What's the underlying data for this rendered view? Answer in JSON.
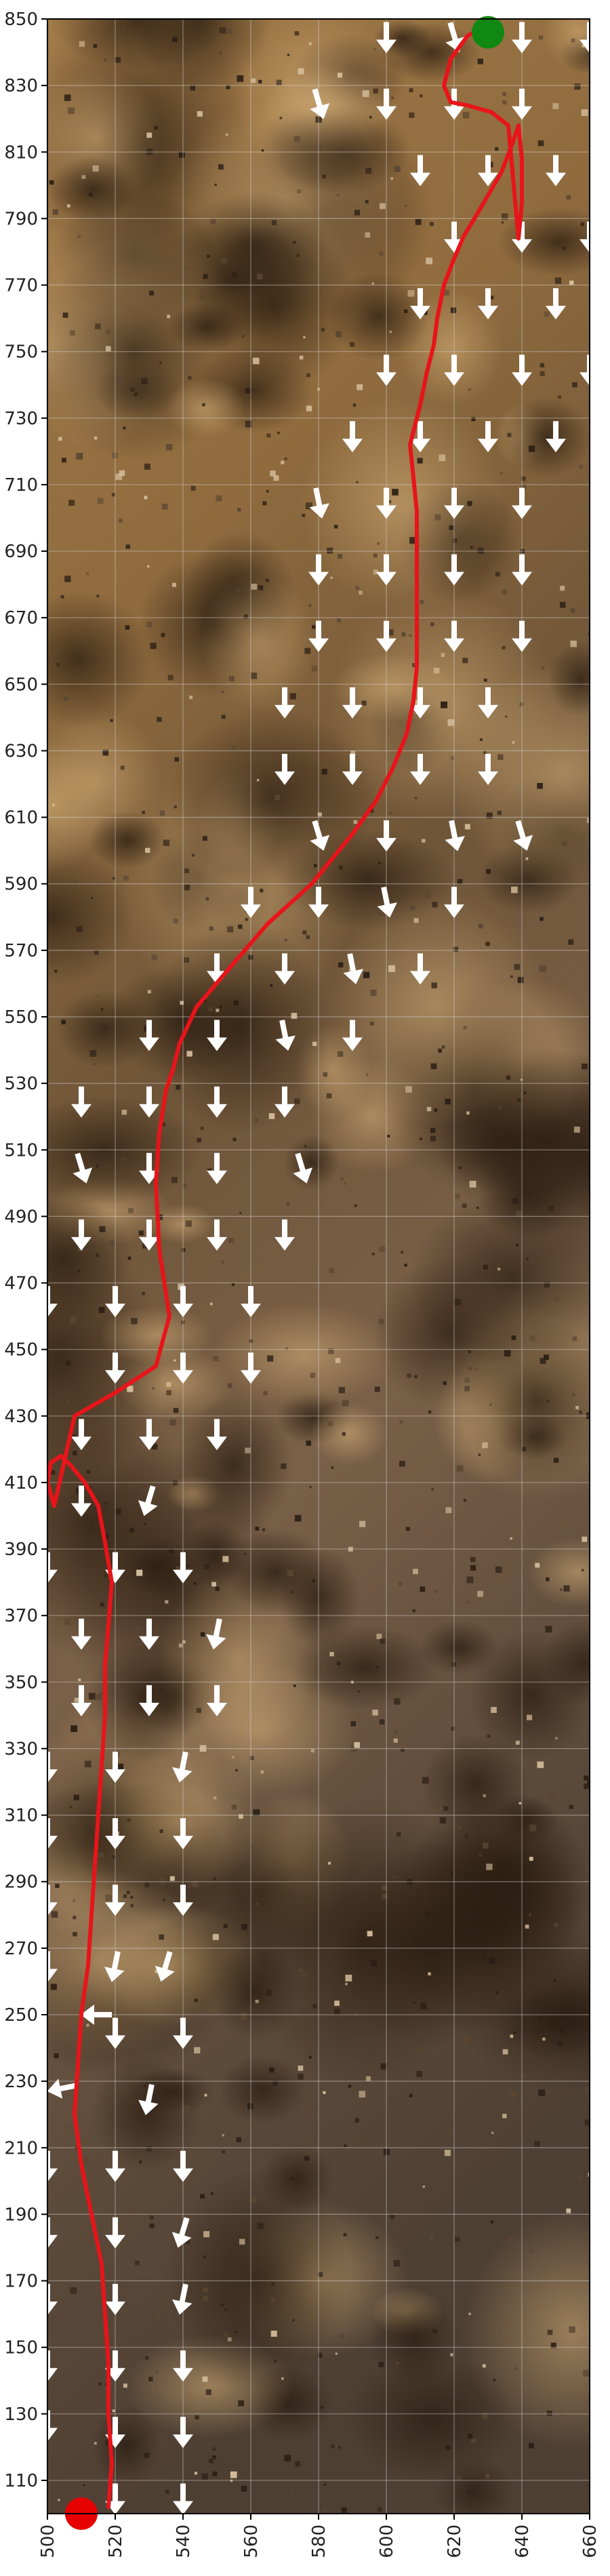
{
  "chart_data": {
    "type": "scatter",
    "title": "",
    "xlabel": "",
    "ylabel": "",
    "xlim": [
      500,
      660
    ],
    "ylim": [
      100,
      850
    ],
    "grid": true,
    "x_ticks": [
      500,
      520,
      540,
      560,
      580,
      600,
      620,
      640,
      660
    ],
    "y_ticks": [
      110,
      130,
      150,
      170,
      190,
      210,
      230,
      250,
      270,
      290,
      310,
      330,
      350,
      370,
      390,
      410,
      430,
      450,
      470,
      490,
      510,
      530,
      550,
      570,
      590,
      610,
      630,
      650,
      670,
      690,
      710,
      730,
      750,
      770,
      790,
      810,
      830,
      850
    ],
    "path": {
      "color": "#e8141a",
      "x": [
        518,
        519,
        518,
        518,
        517,
        516,
        513,
        510,
        508,
        509,
        510,
        512,
        513,
        514,
        515,
        516,
        517,
        517,
        518,
        519,
        517,
        515,
        511,
        507,
        504,
        501,
        500,
        502,
        508,
        520,
        532,
        536,
        533,
        532,
        533,
        535,
        537,
        539,
        544,
        554,
        565,
        578,
        590,
        597,
        602,
        606,
        608,
        609,
        609,
        609,
        609,
        609,
        608,
        607,
        610,
        612,
        614,
        615,
        617,
        620,
        623,
        626,
        630,
        634,
        637,
        639,
        640,
        640,
        639,
        636,
        631,
        624,
        619,
        617,
        619,
        624,
        630
      ],
      "y": [
        102,
        115,
        130,
        145,
        160,
        175,
        190,
        205,
        220,
        235,
        250,
        265,
        280,
        295,
        310,
        325,
        340,
        355,
        367,
        380,
        392,
        403,
        410,
        415,
        418,
        416,
        410,
        403,
        430,
        437,
        445,
        460,
        480,
        500,
        515,
        528,
        534,
        542,
        553,
        565,
        578,
        590,
        605,
        615,
        625,
        635,
        645,
        655,
        665,
        675,
        690,
        702,
        712,
        722,
        734,
        744,
        752,
        760,
        770,
        778,
        785,
        790,
        797,
        804,
        812,
        818,
        808,
        795,
        784,
        818,
        822,
        824,
        825,
        830,
        838,
        845,
        848
      ]
    },
    "start_marker": {
      "x": 510,
      "y": 100,
      "color": "#e60000"
    },
    "goal_marker": {
      "x": 630,
      "y": 846,
      "color": "#118811"
    },
    "arrow_field": {
      "color": "#ffffff",
      "points": [
        [
          520,
          105,
          0,
          -1
        ],
        [
          540,
          105,
          0,
          -1
        ],
        [
          520,
          125,
          0,
          -1
        ],
        [
          540,
          125,
          0,
          -1
        ],
        [
          500,
          127,
          0,
          -1
        ],
        [
          520,
          145,
          0,
          -1
        ],
        [
          540,
          145,
          0,
          -1
        ],
        [
          500,
          145,
          0,
          -1
        ],
        [
          520,
          165,
          0,
          -1
        ],
        [
          540,
          165,
          -0.2,
          -1
        ],
        [
          500,
          165,
          0,
          -1
        ],
        [
          520,
          185,
          0,
          -1
        ],
        [
          540,
          185,
          -0.3,
          -1
        ],
        [
          500,
          185,
          0,
          -1
        ],
        [
          520,
          205,
          0,
          -1
        ],
        [
          540,
          205,
          0,
          -1
        ],
        [
          500,
          205,
          0,
          -1
        ],
        [
          530,
          225,
          -0.2,
          -1
        ],
        [
          505,
          228,
          -1,
          -0.2
        ],
        [
          520,
          245,
          0,
          -1
        ],
        [
          540,
          245,
          0,
          -1
        ],
        [
          515,
          250,
          -1,
          0
        ],
        [
          520,
          265,
          -0.2,
          -1
        ],
        [
          535,
          265,
          -0.3,
          -1
        ],
        [
          500,
          265,
          0,
          -1
        ],
        [
          520,
          285,
          0,
          -1
        ],
        [
          540,
          285,
          0,
          -1
        ],
        [
          500,
          285,
          0,
          -1
        ],
        [
          520,
          305,
          0,
          -1
        ],
        [
          540,
          305,
          0,
          -1
        ],
        [
          500,
          305,
          0,
          -1
        ],
        [
          520,
          325,
          0,
          -1
        ],
        [
          540,
          325,
          -0.2,
          -1
        ],
        [
          500,
          325,
          0,
          -1
        ],
        [
          510,
          345,
          0,
          -1
        ],
        [
          530,
          345,
          0,
          -1
        ],
        [
          550,
          345,
          0,
          -1
        ],
        [
          510,
          365,
          0,
          -1
        ],
        [
          530,
          365,
          0,
          -1
        ],
        [
          550,
          365,
          -0.2,
          -1
        ],
        [
          500,
          385,
          0,
          -1
        ],
        [
          520,
          385,
          0,
          -1
        ],
        [
          540,
          385,
          0,
          -1
        ],
        [
          510,
          405,
          0,
          -1
        ],
        [
          530,
          405,
          -0.3,
          -1
        ],
        [
          510,
          425,
          0,
          -1
        ],
        [
          530,
          425,
          0,
          -1
        ],
        [
          550,
          425,
          0,
          -1
        ],
        [
          520,
          445,
          0,
          -1
        ],
        [
          540,
          445,
          0,
          -1
        ],
        [
          560,
          445,
          0,
          -1
        ],
        [
          520,
          465,
          0,
          -1
        ],
        [
          540,
          465,
          0,
          -1
        ],
        [
          560,
          465,
          0,
          -1
        ],
        [
          500,
          465,
          0,
          -1
        ],
        [
          510,
          485,
          0,
          -1
        ],
        [
          530,
          485,
          0,
          -1
        ],
        [
          550,
          485,
          0,
          -1
        ],
        [
          570,
          485,
          0,
          -1
        ],
        [
          510,
          505,
          0.3,
          -1
        ],
        [
          530,
          505,
          0,
          -1
        ],
        [
          550,
          505,
          0,
          -1
        ],
        [
          575,
          505,
          0.3,
          -1
        ],
        [
          510,
          525,
          0,
          -1
        ],
        [
          530,
          525,
          0,
          -1
        ],
        [
          550,
          525,
          0,
          -1
        ],
        [
          570,
          525,
          0,
          -1
        ],
        [
          530,
          545,
          0,
          -1
        ],
        [
          550,
          545,
          0,
          -1
        ],
        [
          570,
          545,
          0.2,
          -1
        ],
        [
          590,
          545,
          0,
          -1
        ],
        [
          550,
          565,
          0,
          -1
        ],
        [
          570,
          565,
          0,
          -1
        ],
        [
          590,
          565,
          0.2,
          -1
        ],
        [
          610,
          565,
          0,
          -1
        ],
        [
          560,
          585,
          0,
          -1
        ],
        [
          580,
          585,
          0,
          -1
        ],
        [
          600,
          585,
          0.2,
          -1
        ],
        [
          620,
          585,
          0,
          -1
        ],
        [
          580,
          605,
          0.3,
          -1
        ],
        [
          600,
          605,
          0,
          -1
        ],
        [
          620,
          605,
          0.2,
          -1
        ],
        [
          640,
          605,
          0.3,
          -1
        ],
        [
          570,
          625,
          0,
          -1
        ],
        [
          590,
          625,
          0,
          -1
        ],
        [
          610,
          625,
          0,
          -1
        ],
        [
          630,
          625,
          0,
          -1
        ],
        [
          570,
          645,
          0,
          -1
        ],
        [
          590,
          645,
          0,
          -1
        ],
        [
          610,
          645,
          0,
          -1
        ],
        [
          630,
          645,
          0,
          -1
        ],
        [
          580,
          665,
          0,
          -1
        ],
        [
          600,
          665,
          0,
          -1
        ],
        [
          620,
          665,
          0,
          -1
        ],
        [
          640,
          665,
          0,
          -1
        ],
        [
          580,
          685,
          0,
          -1
        ],
        [
          600,
          685,
          0,
          -1
        ],
        [
          620,
          685,
          0,
          -1
        ],
        [
          640,
          685,
          0,
          -1
        ],
        [
          580,
          705,
          0.2,
          -1
        ],
        [
          600,
          705,
          0,
          -1
        ],
        [
          620,
          705,
          0,
          -1
        ],
        [
          640,
          705,
          0,
          -1
        ],
        [
          590,
          725,
          0,
          -1
        ],
        [
          610,
          725,
          0,
          -1
        ],
        [
          630,
          725,
          0,
          -1
        ],
        [
          650,
          725,
          0,
          -1
        ],
        [
          600,
          745,
          0,
          -1
        ],
        [
          620,
          745,
          0,
          -1
        ],
        [
          640,
          745,
          0,
          -1
        ],
        [
          660,
          745,
          0,
          -1
        ],
        [
          610,
          765,
          0,
          -1
        ],
        [
          630,
          765,
          0,
          -1
        ],
        [
          650,
          765,
          0,
          -1
        ],
        [
          620,
          785,
          0,
          -1
        ],
        [
          640,
          785,
          0,
          -1
        ],
        [
          660,
          785,
          0,
          -1
        ],
        [
          610,
          805,
          0,
          -1
        ],
        [
          630,
          805,
          0,
          -1
        ],
        [
          650,
          805,
          0,
          -1
        ],
        [
          580,
          825,
          0.3,
          -1
        ],
        [
          600,
          825,
          0,
          -1
        ],
        [
          620,
          825,
          0,
          -1
        ],
        [
          640,
          825,
          0,
          -1
        ],
        [
          600,
          845,
          0,
          -1
        ],
        [
          620,
          845,
          0.3,
          -1
        ],
        [
          640,
          845,
          0,
          -1
        ],
        [
          660,
          845,
          0,
          -1
        ]
      ]
    }
  }
}
